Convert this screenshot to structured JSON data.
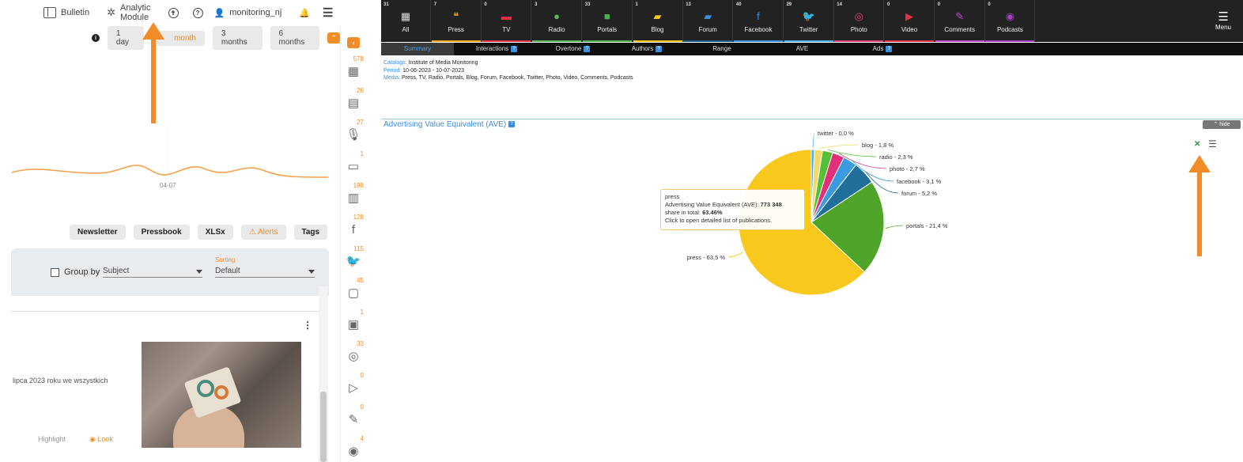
{
  "topnav": {
    "bulletin": "Bulletin",
    "analytic": "Analytic Module",
    "user": "monitoring_nj"
  },
  "ranges": {
    "r1": "1 day",
    "r2": "month",
    "r3": "3 months",
    "r4": "6 months"
  },
  "spark_xlabel": "04-07",
  "actions": {
    "newsletter": "Newsletter",
    "pressbook": "Pressbook",
    "xlsx": "XLSx",
    "alerts": "Alerts",
    "tags": "Tags"
  },
  "filters": {
    "group_by": "Group by",
    "group_value": "Subject",
    "sorting_label": "Sorting",
    "sorting_value": "Default"
  },
  "card": {
    "text": "lipca 2023 roku we wszystkich",
    "highlight": "Highlight",
    "look": "Look"
  },
  "side_icons": [
    {
      "count": "578",
      "icon": "grid-icon",
      "glyph": "▦"
    },
    {
      "count": "26",
      "icon": "newspaper-icon",
      "glyph": "▤"
    },
    {
      "count": "27",
      "icon": "microphone-icon",
      "glyph": "🎙"
    },
    {
      "count": "1",
      "icon": "tv-icon",
      "glyph": "▭"
    },
    {
      "count": "198",
      "icon": "portal-icon",
      "glyph": "▥"
    },
    {
      "count": "128",
      "icon": "facebook-icon",
      "glyph": "f"
    },
    {
      "count": "115",
      "icon": "twitter-icon",
      "glyph": "🐦"
    },
    {
      "count": "45",
      "icon": "comment-icon",
      "glyph": "▢"
    },
    {
      "count": "1",
      "icon": "blog-icon",
      "glyph": "▣"
    },
    {
      "count": "33",
      "icon": "instagram-icon",
      "glyph": "◎"
    },
    {
      "count": "0",
      "icon": "play-icon",
      "glyph": "▷"
    },
    {
      "count": "0",
      "icon": "pen-icon",
      "glyph": "✎"
    },
    {
      "count": "4",
      "icon": "podcast-icon",
      "glyph": "◉"
    }
  ],
  "media_tabs": [
    {
      "count": "31",
      "label": "All",
      "glyph": "▦",
      "color": "#dddddd",
      "bar": "#222222"
    },
    {
      "count": "7",
      "label": "Press",
      "glyph": "❝",
      "color": "#f5a623",
      "bar": "#f5a623"
    },
    {
      "count": "0",
      "label": "TV",
      "glyph": "▬",
      "color": "#e0304a",
      "bar": "#e0304a"
    },
    {
      "count": "3",
      "label": "Radio",
      "glyph": "●",
      "color": "#5cb85c",
      "bar": "#5cb85c"
    },
    {
      "count": "33",
      "label": "Portals",
      "glyph": "■",
      "color": "#4caf50",
      "bar": "#4caf50"
    },
    {
      "count": "1",
      "label": "Blog",
      "glyph": "▰",
      "color": "#f5c518",
      "bar": "#f5c518"
    },
    {
      "count": "13",
      "label": "Forum",
      "glyph": "▰",
      "color": "#3a8ee0",
      "bar": "#1c5a8a"
    },
    {
      "count": "40",
      "label": "Facebook",
      "glyph": "f",
      "color": "#3a8ee0",
      "bar": "#3a8ee0"
    },
    {
      "count": "29",
      "label": "Twitter",
      "glyph": "🐦",
      "color": "#4ab0f0",
      "bar": "#4ab0f0"
    },
    {
      "count": "14",
      "label": "Photo",
      "glyph": "◎",
      "color": "#e0407a",
      "bar": "#e0407a"
    },
    {
      "count": "0",
      "label": "Video",
      "glyph": "▶",
      "color": "#e0304a",
      "bar": "#e0304a"
    },
    {
      "count": "0",
      "label": "Comments",
      "glyph": "✎",
      "color": "#c04ad0",
      "bar": "#c04ad0"
    },
    {
      "count": "0",
      "label": "Podcasts",
      "glyph": "◉",
      "color": "#a040c0",
      "bar": "#a040c0"
    }
  ],
  "menu_label": "Menu",
  "subtabs": [
    "Summary",
    "Interactions",
    "Overtone",
    "Authors",
    "Range",
    "AVE",
    "Ads"
  ],
  "meta": {
    "catalog_k": "Catalogs:",
    "catalog_v": "Institute of Media Monitoring",
    "period_k": "Period:",
    "period_v": "10-06-2023 - 10-07-2023",
    "media_k": "Media:",
    "media_v": "Press, TV, Radio, Portals, Blog, Forum, Facebook, Twitter, Photo, Video, Comments, Podcasts"
  },
  "section_title": "Advertising Value Equivalent (AVE)",
  "hide_label": "hide",
  "tooltip": {
    "name": "press",
    "line1_label": "Advertising Value Equivalent (AVE):",
    "line1_value": "773 348",
    "line2_label": "share in total:",
    "line2_value": "63.46%",
    "line3": "Click to open detailed list of publications."
  },
  "chart_data": {
    "type": "pie",
    "title": "Advertising Value Equivalent (AVE)",
    "slices": [
      {
        "name": "press",
        "label": "press - 63,5 %",
        "value": 63.5,
        "color": "#f9c81c"
      },
      {
        "name": "portals",
        "label": "portals - 21,4 %",
        "value": 21.4,
        "color": "#4ea52a"
      },
      {
        "name": "forum",
        "label": "forum - 5,2 %",
        "value": 5.2,
        "color": "#1f6f9a"
      },
      {
        "name": "facebook",
        "label": "facebook - 3,1 %",
        "value": 3.1,
        "color": "#3a9be0"
      },
      {
        "name": "photo",
        "label": "photo - 2,7 %",
        "value": 2.7,
        "color": "#e0307a"
      },
      {
        "name": "radio",
        "label": "radio - 2,3 %",
        "value": 2.3,
        "color": "#54c038"
      },
      {
        "name": "blog",
        "label": "blog - 1,8 %",
        "value": 1.8,
        "color": "#f5d96a"
      },
      {
        "name": "twitter",
        "label": "twitter - 0,0 %",
        "value": 0.0,
        "color": "#4ab0f0"
      }
    ]
  }
}
